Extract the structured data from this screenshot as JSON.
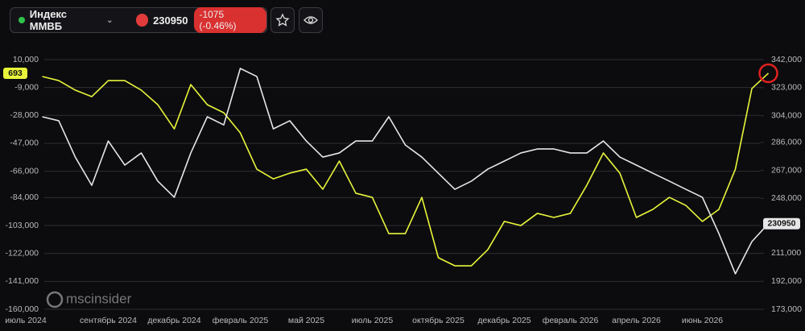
{
  "header": {
    "title": "Индекс ММВБ",
    "change": "-1075 (-0.46%)"
  },
  "watermark": "mscinsider",
  "chart_data": {
    "type": "line",
    "categories": [
      "июль 2024",
      null,
      null,
      null,
      null,
      "сентябрь 2024",
      null,
      null,
      null,
      "декабрь 2024",
      null,
      null,
      null,
      "февраль 2025",
      null,
      null,
      null,
      "май 2025",
      null,
      null,
      null,
      "июль 2025",
      null,
      null,
      null,
      "октябрь 2025",
      null,
      null,
      null,
      "декабрь 2025",
      null,
      null,
      null,
      "февраль 2026",
      null,
      null,
      null,
      "апрель 2026",
      null,
      null,
      null,
      "июнь 2026",
      null,
      null,
      null,
      null
    ],
    "series": [
      {
        "color": "#e8f53a",
        "axis": "y",
        "values": [
          null,
          -1500,
          -4300,
          -10800,
          -15200,
          -4300,
          -4300,
          -10800,
          -20700,
          -37200,
          -7000,
          -20700,
          -26200,
          -39900,
          -64600,
          -71200,
          -67300,
          -64600,
          -78300,
          -59100,
          -81000,
          -83800,
          -108500,
          -108500,
          -83800,
          -124900,
          -130400,
          -130400,
          -119400,
          -100200,
          -103000,
          -94700,
          -97500,
          -94700,
          -75500,
          -53600,
          -67300,
          -97500,
          -92000,
          -83800,
          -89300,
          -100200,
          -92000,
          -64600,
          -9700,
          693
        ]
      },
      {
        "color": "#e6e6e6",
        "axis": "y2",
        "values": [
          null,
          303300,
          300600,
          276000,
          256900,
          286900,
          270600,
          278800,
          259700,
          248800,
          278800,
          303300,
          297800,
          336000,
          330600,
          295100,
          300600,
          286900,
          276000,
          278800,
          286900,
          286900,
          303300,
          284200,
          276000,
          265100,
          254200,
          259700,
          267900,
          273300,
          278800,
          281500,
          281500,
          278800,
          278800,
          286900,
          276000,
          270600,
          265100,
          259700,
          254200,
          248800,
          224300,
          197000,
          218800,
          230950
        ]
      }
    ],
    "ylim": [
      -160000,
      10000
    ],
    "yticks": [
      {
        "value": 10000,
        "label": "10,000"
      },
      {
        "value": -9000,
        "label": "-9,000"
      },
      {
        "value": -28000,
        "label": "-28,000"
      },
      {
        "value": -47000,
        "label": "-47,000"
      },
      {
        "value": -66000,
        "label": "-66,000"
      },
      {
        "value": -84000,
        "label": "-84,000"
      },
      {
        "value": -103000,
        "label": "-103,000"
      },
      {
        "value": -122000,
        "label": "-122,000"
      },
      {
        "value": -141000,
        "label": "-141,000"
      },
      {
        "value": -160000,
        "label": "-160,000"
      }
    ],
    "y2lim": [
      173000,
      342000
    ],
    "y2ticks": [
      {
        "value": 342000,
        "label": "342,000"
      },
      {
        "value": 323000,
        "label": "323,000"
      },
      {
        "value": 304000,
        "label": "304,000"
      },
      {
        "value": 286000,
        "label": "286,000"
      },
      {
        "value": 267000,
        "label": "267,000"
      },
      {
        "value": 248000,
        "label": "248,000"
      },
      {
        "value": 211000,
        "label": "211,000"
      },
      {
        "value": 192000,
        "label": "192,000"
      },
      {
        "value": 173000,
        "label": "173,000"
      }
    ],
    "grid": true
  }
}
